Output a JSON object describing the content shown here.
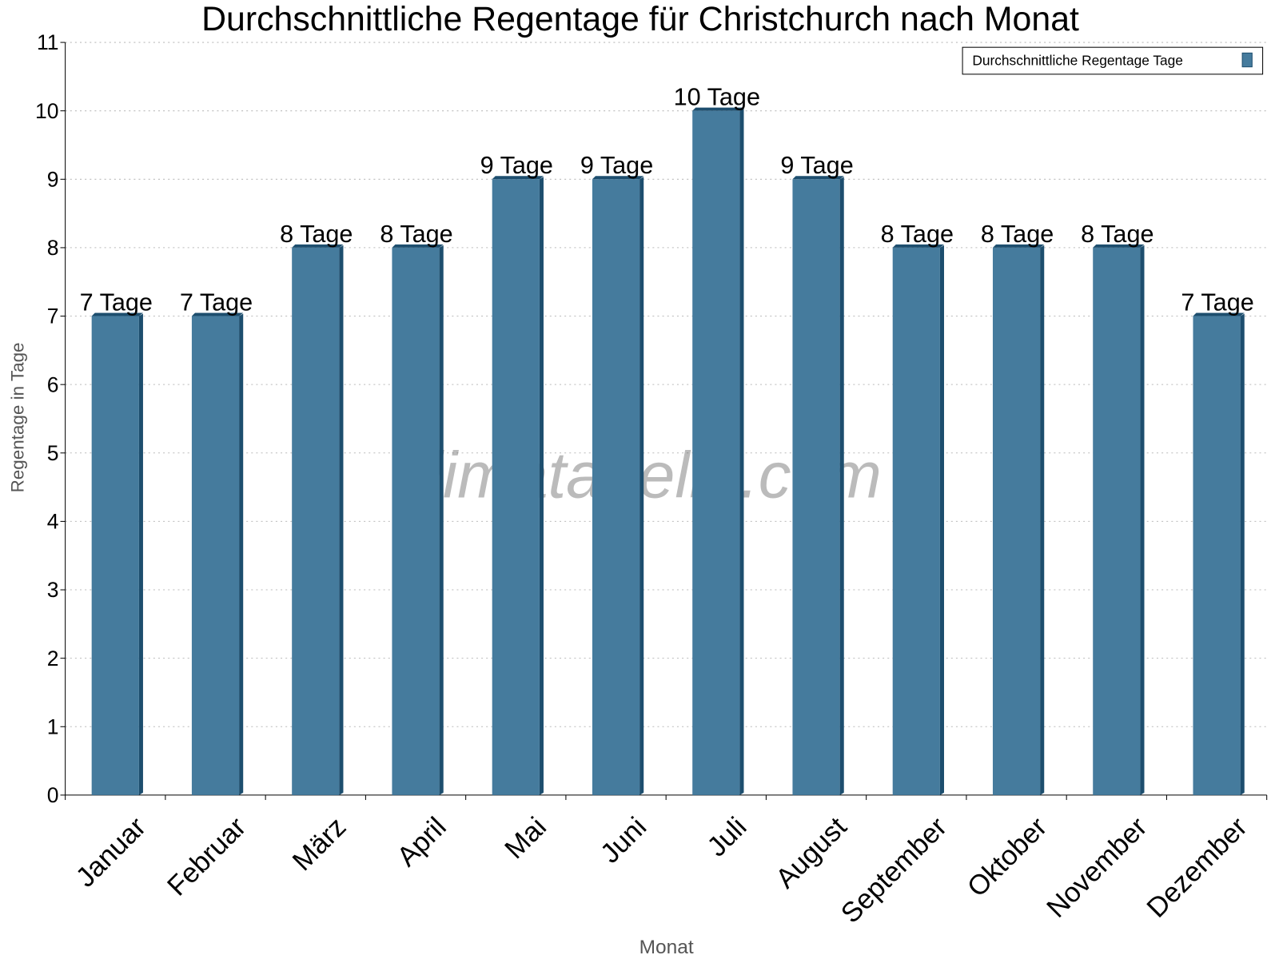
{
  "chart_data": {
    "type": "bar",
    "title": "Durchschnittliche Regentage für Christchurch nach Monat",
    "xlabel": "Monat",
    "ylabel": "Regentage in Tage",
    "ylim": [
      0,
      11
    ],
    "yticks": [
      0,
      1,
      2,
      3,
      4,
      5,
      6,
      7,
      8,
      9,
      10,
      11
    ],
    "grid": true,
    "legend_position": "top-right",
    "categories": [
      "Januar",
      "Februar",
      "März",
      "April",
      "Mai",
      "Juni",
      "Juli",
      "August",
      "September",
      "Oktober",
      "November",
      "Dezember"
    ],
    "series": [
      {
        "name": "Durchschnittliche Regentage Tage",
        "values": [
          7,
          7,
          8,
          8,
          9,
          9,
          10,
          9,
          8,
          8,
          8,
          7
        ],
        "labels": [
          "7 Tage",
          "7 Tage",
          "8 Tage",
          "8 Tage",
          "9 Tage",
          "9 Tage",
          "10 Tage",
          "9 Tage",
          "8 Tage",
          "8 Tage",
          "8 Tage",
          "7 Tage"
        ],
        "color": "#457b9d",
        "side_color": "#1d4e6e"
      }
    ],
    "watermark": "klimatabelle.com"
  }
}
